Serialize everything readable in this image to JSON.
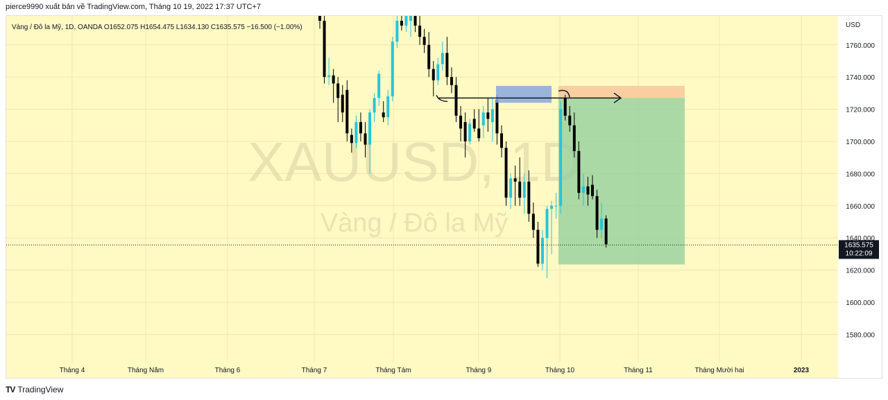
{
  "header": {
    "publisher_line": "pierce9990 xuất bản về TradingView.com, Tháng 10 19, 2022 17:37 UTC+7"
  },
  "footer": {
    "brand": "TradingView"
  },
  "colors": {
    "background": "#fff9c4",
    "up": "#26c6da",
    "down": "#000000",
    "target_zone": "#8fce9c",
    "stop_zone": "#f9c79b",
    "supply_box": "#8aa8de"
  },
  "chart_data": {
    "type": "candlestick",
    "legend": "Vàng / Đô la Mỹ, 1D, OANDA  O1652.075  H1654.475  L1634.130  C1635.575  −16.500 (−1.00%)",
    "watermark_symbol": "XAUUSD, 1D",
    "watermark_name": "Vàng / Đô la Mỹ",
    "y_axis_unit": "USD",
    "ylim": [
      1553,
      1778
    ],
    "y_ticks": [
      "1760.000",
      "1740.000",
      "1720.000",
      "1700.000",
      "1680.000",
      "1660.000",
      "1640.000",
      "1620.000",
      "1600.000",
      "1580.000"
    ],
    "x_ticks": [
      "Tháng 4",
      "Tháng Năm",
      "Tháng 6",
      "Tháng 7",
      "Tháng Tám",
      "Tháng 9",
      "Tháng 10",
      "Tháng 11",
      "Tháng Mười hai",
      "2023"
    ],
    "last_price": "1635.575",
    "countdown": "10:22:09",
    "grid": true,
    "candles": [
      {
        "o": 1787,
        "h": 1790,
        "l": 1770,
        "c": 1775
      },
      {
        "o": 1775,
        "h": 1782,
        "l": 1736,
        "c": 1740
      },
      {
        "o": 1740,
        "h": 1752,
        "l": 1735,
        "c": 1741
      },
      {
        "o": 1741,
        "h": 1745,
        "l": 1724,
        "c": 1736
      },
      {
        "o": 1736,
        "h": 1740,
        "l": 1712,
        "c": 1727
      },
      {
        "o": 1729,
        "h": 1735,
        "l": 1712,
        "c": 1718
      },
      {
        "o": 1732,
        "h": 1738,
        "l": 1700,
        "c": 1705
      },
      {
        "o": 1704,
        "h": 1708,
        "l": 1693,
        "c": 1699
      },
      {
        "o": 1699,
        "h": 1716,
        "l": 1696,
        "c": 1712
      },
      {
        "o": 1712,
        "h": 1718,
        "l": 1700,
        "c": 1705
      },
      {
        "o": 1705,
        "h": 1712,
        "l": 1690,
        "c": 1698
      },
      {
        "o": 1698,
        "h": 1720,
        "l": 1680,
        "c": 1718
      },
      {
        "o": 1718,
        "h": 1730,
        "l": 1712,
        "c": 1727
      },
      {
        "o": 1727,
        "h": 1744,
        "l": 1722,
        "c": 1742
      },
      {
        "o": 1718,
        "h": 1725,
        "l": 1712,
        "c": 1715
      },
      {
        "o": 1715,
        "h": 1732,
        "l": 1710,
        "c": 1728
      },
      {
        "o": 1728,
        "h": 1765,
        "l": 1725,
        "c": 1762
      },
      {
        "o": 1762,
        "h": 1782,
        "l": 1758,
        "c": 1775
      },
      {
        "o": 1775,
        "h": 1790,
        "l": 1769,
        "c": 1772
      },
      {
        "o": 1772,
        "h": 1790,
        "l": 1768,
        "c": 1785
      },
      {
        "o": 1775,
        "h": 1795,
        "l": 1765,
        "c": 1778
      },
      {
        "o": 1785,
        "h": 1790,
        "l": 1768,
        "c": 1772
      },
      {
        "o": 1772,
        "h": 1778,
        "l": 1760,
        "c": 1765
      },
      {
        "o": 1765,
        "h": 1770,
        "l": 1755,
        "c": 1760
      },
      {
        "o": 1760,
        "h": 1768,
        "l": 1740,
        "c": 1745
      },
      {
        "o": 1745,
        "h": 1750,
        "l": 1728,
        "c": 1738
      },
      {
        "o": 1738,
        "h": 1752,
        "l": 1735,
        "c": 1748
      },
      {
        "o": 1748,
        "h": 1762,
        "l": 1744,
        "c": 1755
      },
      {
        "o": 1755,
        "h": 1765,
        "l": 1735,
        "c": 1740
      },
      {
        "o": 1740,
        "h": 1746,
        "l": 1730,
        "c": 1735
      },
      {
        "o": 1735,
        "h": 1740,
        "l": 1712,
        "c": 1716
      },
      {
        "o": 1716,
        "h": 1722,
        "l": 1700,
        "c": 1708
      },
      {
        "o": 1712,
        "h": 1718,
        "l": 1690,
        "c": 1700
      },
      {
        "o": 1700,
        "h": 1714,
        "l": 1698,
        "c": 1711
      },
      {
        "o": 1714,
        "h": 1720,
        "l": 1706,
        "c": 1708
      },
      {
        "o": 1708,
        "h": 1720,
        "l": 1700,
        "c": 1702
      },
      {
        "o": 1710,
        "h": 1722,
        "l": 1702,
        "c": 1718
      },
      {
        "o": 1718,
        "h": 1727,
        "l": 1706,
        "c": 1714
      },
      {
        "o": 1712,
        "h": 1727,
        "l": 1700,
        "c": 1720
      },
      {
        "o": 1726,
        "h": 1729,
        "l": 1698,
        "c": 1705
      },
      {
        "o": 1705,
        "h": 1710,
        "l": 1690,
        "c": 1696
      },
      {
        "o": 1696,
        "h": 1700,
        "l": 1660,
        "c": 1665
      },
      {
        "o": 1665,
        "h": 1680,
        "l": 1658,
        "c": 1677
      },
      {
        "o": 1677,
        "h": 1685,
        "l": 1660,
        "c": 1675
      },
      {
        "o": 1675,
        "h": 1690,
        "l": 1660,
        "c": 1665
      },
      {
        "o": 1665,
        "h": 1680,
        "l": 1655,
        "c": 1675
      },
      {
        "o": 1675,
        "h": 1682,
        "l": 1650,
        "c": 1655
      },
      {
        "o": 1655,
        "h": 1662,
        "l": 1640,
        "c": 1645
      },
      {
        "o": 1645,
        "h": 1650,
        "l": 1622,
        "c": 1624
      },
      {
        "o": 1624,
        "h": 1645,
        "l": 1620,
        "c": 1640
      },
      {
        "o": 1640,
        "h": 1660,
        "l": 1615,
        "c": 1658
      },
      {
        "o": 1658,
        "h": 1663,
        "l": 1630,
        "c": 1660
      },
      {
        "o": 1660,
        "h": 1668,
        "l": 1652,
        "c": 1660
      },
      {
        "o": 1660,
        "h": 1725,
        "l": 1655,
        "c": 1720
      },
      {
        "o": 1727,
        "h": 1729,
        "l": 1713,
        "c": 1716
      },
      {
        "o": 1716,
        "h": 1722,
        "l": 1706,
        "c": 1710
      },
      {
        "o": 1710,
        "h": 1718,
        "l": 1690,
        "c": 1694
      },
      {
        "o": 1694,
        "h": 1700,
        "l": 1664,
        "c": 1668
      },
      {
        "o": 1668,
        "h": 1680,
        "l": 1660,
        "c": 1672
      },
      {
        "o": 1672,
        "h": 1678,
        "l": 1660,
        "c": 1667
      },
      {
        "o": 1673,
        "h": 1679,
        "l": 1664,
        "c": 1666
      },
      {
        "o": 1666,
        "h": 1670,
        "l": 1640,
        "c": 1645
      },
      {
        "o": 1645,
        "h": 1662,
        "l": 1640,
        "c": 1652
      },
      {
        "o": 1652,
        "h": 1654,
        "l": 1634,
        "c": 1636
      }
    ],
    "position": {
      "entry": 1727,
      "stop": 1734.5,
      "target": 1623.5
    },
    "supply_zone": {
      "top": 1734.5,
      "bottom": 1724
    },
    "neckline": 1727
  }
}
